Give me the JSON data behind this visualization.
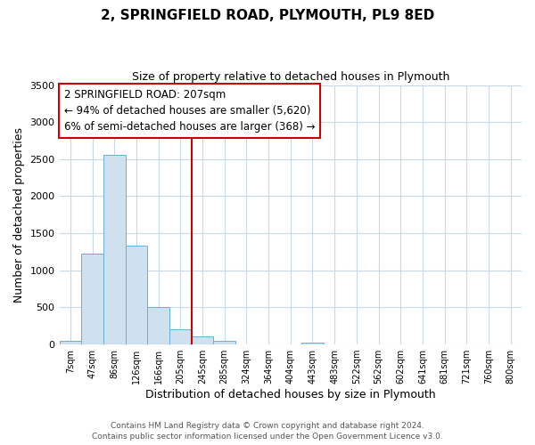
{
  "title": "2, SPRINGFIELD ROAD, PLYMOUTH, PL9 8ED",
  "subtitle": "Size of property relative to detached houses in Plymouth",
  "xlabel": "Distribution of detached houses by size in Plymouth",
  "ylabel": "Number of detached properties",
  "bar_labels": [
    "7sqm",
    "47sqm",
    "86sqm",
    "126sqm",
    "166sqm",
    "205sqm",
    "245sqm",
    "285sqm",
    "324sqm",
    "364sqm",
    "404sqm",
    "443sqm",
    "483sqm",
    "522sqm",
    "562sqm",
    "602sqm",
    "641sqm",
    "681sqm",
    "721sqm",
    "760sqm",
    "800sqm"
  ],
  "bar_values": [
    50,
    1220,
    2560,
    1330,
    500,
    200,
    110,
    50,
    0,
    0,
    0,
    30,
    0,
    0,
    0,
    0,
    0,
    0,
    0,
    0,
    0
  ],
  "bar_color": "#cfe0ef",
  "bar_edgecolor": "#6aaed6",
  "vline_color": "#cc0000",
  "ylim": [
    0,
    3500
  ],
  "yticks": [
    0,
    500,
    1000,
    1500,
    2000,
    2500,
    3000,
    3500
  ],
  "annotation_line1": "2 SPRINGFIELD ROAD: 207sqm",
  "annotation_line2": "← 94% of detached houses are smaller (5,620)",
  "annotation_line3": "6% of semi-detached houses are larger (368) →",
  "annotation_box_color": "#ffffff",
  "annotation_box_edgecolor": "#cc0000",
  "footer1": "Contains HM Land Registry data © Crown copyright and database right 2024.",
  "footer2": "Contains public sector information licensed under the Open Government Licence v3.0.",
  "bg_color": "#ffffff",
  "grid_color": "#c8d8e8"
}
